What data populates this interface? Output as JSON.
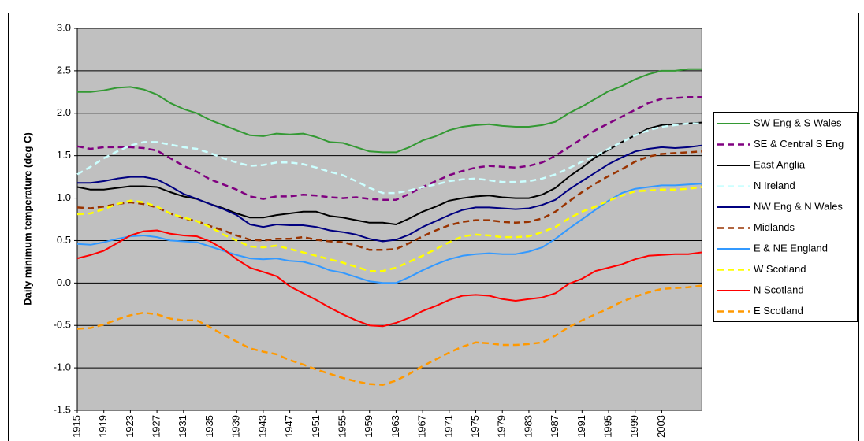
{
  "chart_data": {
    "type": "line",
    "y_label": "Daily minimum temperature (deg C)",
    "x": [
      1915,
      1917,
      1919,
      1921,
      1923,
      1925,
      1927,
      1929,
      1931,
      1933,
      1935,
      1937,
      1939,
      1941,
      1943,
      1945,
      1947,
      1949,
      1951,
      1953,
      1955,
      1957,
      1959,
      1961,
      1963,
      1965,
      1967,
      1969,
      1971,
      1973,
      1975,
      1977,
      1979,
      1981,
      1983,
      1985,
      1987,
      1989,
      1991,
      1993,
      1995,
      1997,
      1999,
      2001,
      2003,
      2005,
      2007,
      2009
    ],
    "xlim": [
      1915,
      2009
    ],
    "xticks": [
      1915,
      1919,
      1923,
      1927,
      1931,
      1935,
      1939,
      1943,
      1947,
      1951,
      1955,
      1959,
      1963,
      1967,
      1971,
      1975,
      1979,
      1983,
      1987,
      1991,
      1995,
      1999,
      2003
    ],
    "ylim": [
      -1.5,
      3
    ],
    "yticks": [
      {
        "value": 3,
        "label": "3.0"
      },
      2.5,
      {
        "value": 2,
        "label": "2.0"
      },
      1.5,
      {
        "value": 1,
        "label": "1.0"
      },
      0.5,
      {
        "value": 0,
        "label": "0.0"
      },
      -0.5,
      {
        "value": -1,
        "label": "-1.0"
      },
      -1.5
    ],
    "grid": true,
    "legend": "right",
    "series": [
      {
        "name": "SW Eng & S Wales",
        "color": "#339933",
        "dashed": false,
        "values": [
          2.25,
          2.25,
          2.27,
          2.3,
          2.31,
          2.28,
          2.22,
          2.12,
          2.05,
          2.0,
          1.92,
          1.86,
          1.8,
          1.74,
          1.73,
          1.76,
          1.75,
          1.76,
          1.72,
          1.66,
          1.65,
          1.6,
          1.55,
          1.54,
          1.54,
          1.6,
          1.68,
          1.73,
          1.8,
          1.84,
          1.86,
          1.87,
          1.85,
          1.84,
          1.84,
          1.86,
          1.9,
          2.0,
          2.08,
          2.17,
          2.26,
          2.32,
          2.4,
          2.46,
          2.5,
          2.5,
          2.52,
          2.52
        ]
      },
      {
        "name": "SE & Central S Eng",
        "color": "#800080",
        "dashed": true,
        "values": [
          1.61,
          1.58,
          1.6,
          1.6,
          1.6,
          1.59,
          1.56,
          1.47,
          1.38,
          1.31,
          1.22,
          1.16,
          1.1,
          1.02,
          0.99,
          1.02,
          1.02,
          1.04,
          1.03,
          1.01,
          1.0,
          1.01,
          0.99,
          0.98,
          0.98,
          1.05,
          1.13,
          1.2,
          1.27,
          1.32,
          1.36,
          1.38,
          1.37,
          1.36,
          1.38,
          1.42,
          1.5,
          1.6,
          1.7,
          1.8,
          1.88,
          1.96,
          2.04,
          2.12,
          2.17,
          2.18,
          2.19,
          2.19
        ]
      },
      {
        "name": "East Anglia",
        "color": "#000000",
        "dashed": false,
        "values": [
          1.13,
          1.1,
          1.1,
          1.12,
          1.14,
          1.14,
          1.13,
          1.07,
          1.02,
          0.99,
          0.93,
          0.88,
          0.82,
          0.77,
          0.77,
          0.8,
          0.82,
          0.84,
          0.84,
          0.79,
          0.77,
          0.74,
          0.71,
          0.71,
          0.69,
          0.76,
          0.84,
          0.9,
          0.97,
          1.0,
          1.02,
          1.03,
          1.01,
          1.0,
          1.0,
          1.04,
          1.12,
          1.25,
          1.36,
          1.48,
          1.57,
          1.66,
          1.74,
          1.82,
          1.86,
          1.87,
          1.88,
          1.89
        ]
      },
      {
        "name": "N Ireland",
        "color": "#ccffff",
        "dashed": true,
        "values": [
          1.28,
          1.37,
          1.47,
          1.55,
          1.62,
          1.66,
          1.66,
          1.63,
          1.6,
          1.58,
          1.53,
          1.47,
          1.42,
          1.38,
          1.39,
          1.42,
          1.42,
          1.4,
          1.36,
          1.31,
          1.27,
          1.2,
          1.12,
          1.06,
          1.06,
          1.09,
          1.13,
          1.16,
          1.2,
          1.22,
          1.23,
          1.21,
          1.19,
          1.19,
          1.2,
          1.23,
          1.28,
          1.35,
          1.43,
          1.5,
          1.58,
          1.66,
          1.74,
          1.8,
          1.84,
          1.86,
          1.88,
          1.88
        ]
      },
      {
        "name": "NW Eng & N Wales",
        "color": "#000080",
        "dashed": false,
        "values": [
          1.18,
          1.18,
          1.2,
          1.23,
          1.25,
          1.25,
          1.22,
          1.14,
          1.05,
          0.99,
          0.93,
          0.87,
          0.8,
          0.69,
          0.66,
          0.69,
          0.68,
          0.68,
          0.66,
          0.62,
          0.6,
          0.57,
          0.52,
          0.49,
          0.51,
          0.57,
          0.66,
          0.73,
          0.8,
          0.86,
          0.89,
          0.89,
          0.88,
          0.87,
          0.88,
          0.92,
          0.98,
          1.1,
          1.2,
          1.3,
          1.4,
          1.48,
          1.55,
          1.58,
          1.6,
          1.59,
          1.6,
          1.62
        ]
      },
      {
        "name": "Midlands",
        "color": "#993300",
        "dashed": true,
        "values": [
          0.89,
          0.88,
          0.9,
          0.93,
          0.95,
          0.93,
          0.89,
          0.82,
          0.76,
          0.73,
          0.67,
          0.62,
          0.56,
          0.51,
          0.5,
          0.52,
          0.52,
          0.54,
          0.51,
          0.49,
          0.48,
          0.44,
          0.39,
          0.39,
          0.4,
          0.47,
          0.55,
          0.62,
          0.68,
          0.72,
          0.74,
          0.74,
          0.72,
          0.71,
          0.72,
          0.76,
          0.84,
          0.96,
          1.07,
          1.17,
          1.26,
          1.34,
          1.43,
          1.49,
          1.52,
          1.53,
          1.54,
          1.55
        ]
      },
      {
        "name": "E & NE England",
        "color": "#3399ff",
        "dashed": false,
        "values": [
          0.46,
          0.45,
          0.48,
          0.52,
          0.55,
          0.56,
          0.54,
          0.5,
          0.49,
          0.48,
          0.43,
          0.38,
          0.33,
          0.29,
          0.28,
          0.29,
          0.26,
          0.25,
          0.21,
          0.15,
          0.12,
          0.07,
          0.02,
          0.0,
          0.0,
          0.07,
          0.15,
          0.22,
          0.28,
          0.32,
          0.34,
          0.35,
          0.34,
          0.34,
          0.37,
          0.42,
          0.52,
          0.64,
          0.75,
          0.86,
          0.97,
          1.06,
          1.11,
          1.13,
          1.15,
          1.15,
          1.16,
          1.17
        ]
      },
      {
        "name": "W Scotland",
        "color": "#ffff00",
        "dashed": true,
        "values": [
          0.81,
          0.82,
          0.87,
          0.93,
          0.97,
          0.95,
          0.9,
          0.82,
          0.77,
          0.73,
          0.66,
          0.57,
          0.5,
          0.43,
          0.42,
          0.44,
          0.4,
          0.36,
          0.32,
          0.28,
          0.24,
          0.19,
          0.14,
          0.14,
          0.18,
          0.25,
          0.32,
          0.4,
          0.48,
          0.55,
          0.57,
          0.56,
          0.54,
          0.54,
          0.55,
          0.6,
          0.66,
          0.76,
          0.84,
          0.9,
          0.97,
          1.03,
          1.08,
          1.09,
          1.1,
          1.1,
          1.11,
          1.13
        ]
      },
      {
        "name": "N Scotland",
        "color": "#ff0000",
        "dashed": false,
        "values": [
          0.29,
          0.33,
          0.38,
          0.47,
          0.56,
          0.61,
          0.62,
          0.58,
          0.56,
          0.55,
          0.49,
          0.4,
          0.28,
          0.18,
          0.13,
          0.08,
          -0.04,
          -0.12,
          -0.2,
          -0.29,
          -0.37,
          -0.44,
          -0.5,
          -0.51,
          -0.47,
          -0.41,
          -0.33,
          -0.27,
          -0.2,
          -0.15,
          -0.14,
          -0.15,
          -0.19,
          -0.21,
          -0.19,
          -0.17,
          -0.12,
          -0.01,
          0.05,
          0.14,
          0.18,
          0.22,
          0.28,
          0.32,
          0.33,
          0.34,
          0.34,
          0.36
        ]
      },
      {
        "name": "E Scotland",
        "color": "#ff9900",
        "dashed": true,
        "values": [
          -0.54,
          -0.53,
          -0.49,
          -0.43,
          -0.38,
          -0.35,
          -0.37,
          -0.42,
          -0.44,
          -0.44,
          -0.52,
          -0.61,
          -0.69,
          -0.77,
          -0.81,
          -0.84,
          -0.91,
          -0.96,
          -1.02,
          -1.07,
          -1.12,
          -1.16,
          -1.19,
          -1.2,
          -1.15,
          -1.07,
          -0.98,
          -0.9,
          -0.82,
          -0.75,
          -0.7,
          -0.71,
          -0.73,
          -0.73,
          -0.72,
          -0.7,
          -0.62,
          -0.52,
          -0.44,
          -0.37,
          -0.3,
          -0.22,
          -0.16,
          -0.11,
          -0.07,
          -0.06,
          -0.05,
          -0.03
        ]
      }
    ]
  }
}
